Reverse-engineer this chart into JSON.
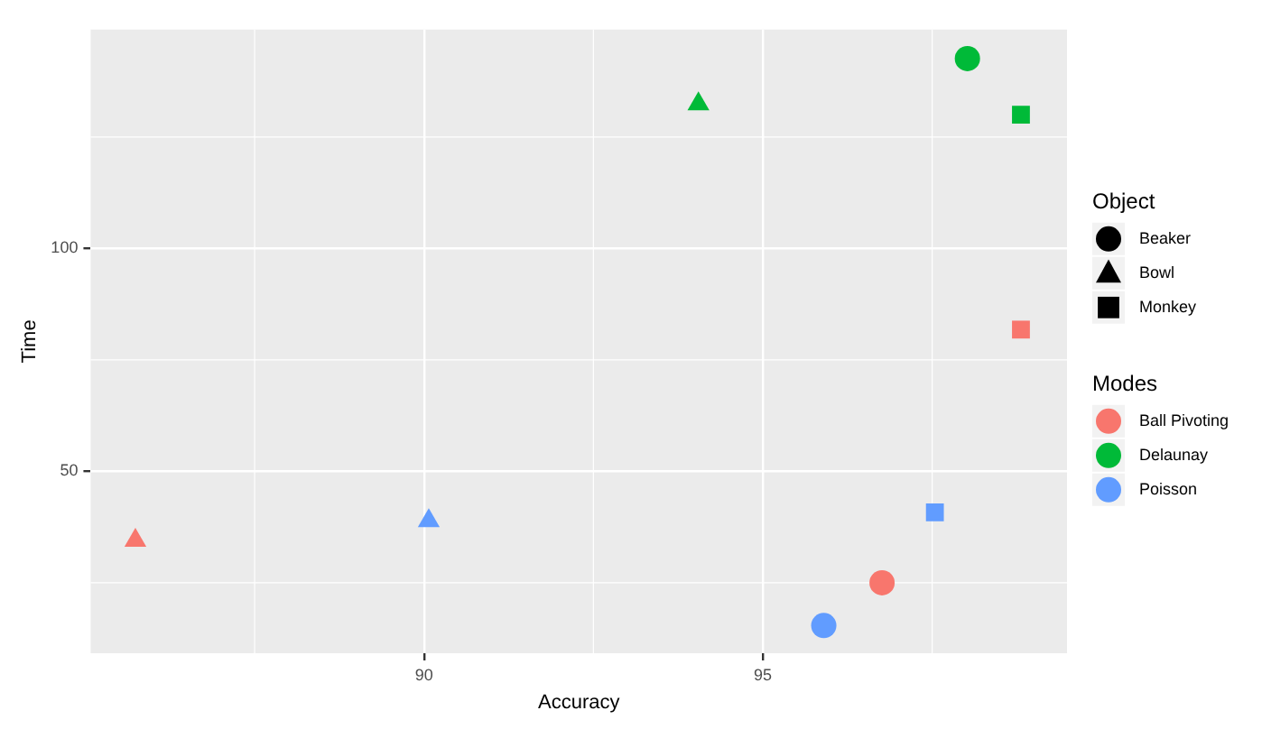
{
  "chart_data": {
    "type": "scatter",
    "xlabel": "Accuracy",
    "ylabel": "Time",
    "legend": "right",
    "legend_title": [
      "Object",
      "Modes"
    ],
    "grid": true,
    "xlim": [
      85.08,
      99.49
    ],
    "xticks": [
      90,
      95
    ],
    "ylim": [
      9.2,
      149.1
    ],
    "yticks": [
      50,
      100
    ],
    "series": [
      {
        "name": "Beaker",
        "marker": "circle",
        "color": "#000000"
      },
      {
        "name": "Bowl",
        "marker": "triangle",
        "color": "#000000"
      },
      {
        "name": "Monkey",
        "marker": "square",
        "color": "#000000"
      },
      {
        "name": "Ball Pivoting",
        "marker": [
          "circle",
          "triangle",
          "square"
        ],
        "color": "#f8766d",
        "x": [
          96.76,
          85.74,
          98.81
        ],
        "values": [
          25.0,
          34.5,
          81.8
        ]
      },
      {
        "name": "Delaunay",
        "marker": [
          "circle",
          "triangle",
          "square"
        ],
        "color": "#00ba38",
        "x": [
          98.02,
          94.05,
          98.81
        ],
        "values": [
          142.6,
          132.4,
          130.0
        ]
      },
      {
        "name": "Poisson",
        "marker": [
          "circle",
          "triangle",
          "square"
        ],
        "color": "#619cff",
        "x": [
          95.9,
          90.07,
          97.54
        ],
        "values": [
          15.4,
          38.9,
          40.8
        ]
      }
    ]
  }
}
